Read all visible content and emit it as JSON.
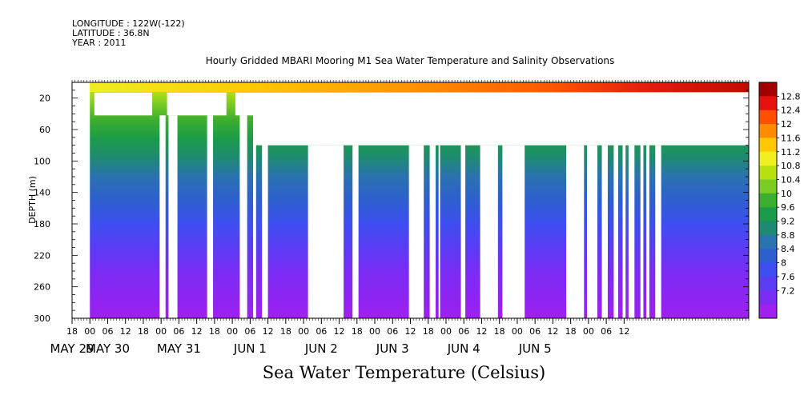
{
  "header": {
    "longitude": "LONGITUDE : 122W(-122)",
    "latitude": "LATITUDE : 36.8N",
    "year": "YEAR : 2011",
    "title": "Hourly Gridded MBARI Mooring M1 Sea Water Temperature and Salinity Observations"
  },
  "caption": "Sea Water Temperature (Celsius)",
  "chart_data": {
    "type": "heatmap",
    "title": "Hourly Gridded MBARI Mooring M1 Sea Water Temperature and Salinity Observations",
    "xlabel": "",
    "ylabel": "DEPTH (m)",
    "ylim": [
      300,
      0
    ],
    "y_axis_inverted": true,
    "y_ticks": [
      20,
      60,
      100,
      140,
      180,
      220,
      260,
      300
    ],
    "x_range_hours": [
      -6,
      222
    ],
    "x_tick_labels": [
      "18",
      "00",
      "06",
      "12",
      "18",
      "00",
      "06",
      "12",
      "18",
      "00",
      "06",
      "12",
      "18",
      "00",
      "06",
      "12",
      "18",
      "00",
      "06",
      "12",
      "18",
      "00",
      "06",
      "12",
      "18",
      "00",
      "06",
      "12",
      "18",
      "00",
      "06",
      "12"
    ],
    "x_date_labels": [
      {
        "label": "MAY 29",
        "hour": -6
      },
      {
        "label": "MAY 30",
        "hour": 6
      },
      {
        "label": "MAY 31",
        "hour": 30
      },
      {
        "label": "JUN  1",
        "hour": 54
      },
      {
        "label": "JUN  2",
        "hour": 78
      },
      {
        "label": "JUN  3",
        "hour": 102
      },
      {
        "label": "JUN  4",
        "hour": 126
      },
      {
        "label": "JUN  5",
        "hour": 150
      }
    ],
    "colorbar": {
      "levels": [
        7.2,
        7.6,
        8,
        8.4,
        8.8,
        9.2,
        9.6,
        10,
        10.4,
        10.8,
        11.2,
        11.6,
        12,
        12.4,
        12.8
      ],
      "labels": [
        "12.8",
        "12.4",
        "12",
        "11.6",
        "11.2",
        "10.8",
        "10.4",
        "10",
        "9.6",
        "9.2",
        "8.8",
        "8.4",
        "8",
        "7.6",
        "7.2"
      ],
      "colors": [
        "#a020f0",
        "#7a2cf5",
        "#5a3cf5",
        "#3e4ef0",
        "#2e5fcf",
        "#2a72b0",
        "#1f8a72",
        "#1c9b4a",
        "#3aae2e",
        "#7bcc22",
        "#b8e010",
        "#f0f020",
        "#ffc800",
        "#ff8c00",
        "#ff5000",
        "#e61010",
        "#a00000"
      ]
    },
    "surface_temperature_range": [
      10.0,
      12.8
    ],
    "deep_temperature_range": [
      7.2,
      7.6
    ],
    "data_gaps": "white regions indicate missing observations"
  }
}
